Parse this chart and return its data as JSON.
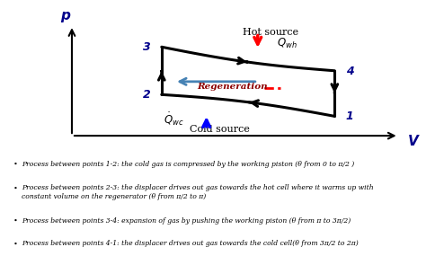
{
  "bg_color": "#ffffff",
  "points": {
    "1": [
      0.82,
      0.18
    ],
    "2": [
      0.28,
      0.38
    ],
    "3": [
      0.28,
      0.82
    ],
    "4": [
      0.82,
      0.6
    ]
  },
  "hot_source_label": "Hot source",
  "cold_source_label": "Cold source",
  "Qwh_label": "$\\dot{Q}_{wh}$",
  "Qwc_label": "$\\dot{Q}_{wc}$",
  "regen_label": "Regeneration",
  "xlabel": "V",
  "ylabel": "p",
  "bullet_lines": [
    "Process between points 1-2: the cold gas is compressed by the working piston (θ from 0 to π/2 )",
    "Process between points 2-3: the displacer drives out gas towards the hot cell where it warms up with\nconstant volume on the regenerator (θ from π/2 to π)",
    "Process between points 3-4: expansion of gas by pushing the working piston (θ from π to 3π/2)",
    "Process between points 4-1: the displacer drives out gas towards the cold cell(θ from 3π/2 to 2π)"
  ]
}
